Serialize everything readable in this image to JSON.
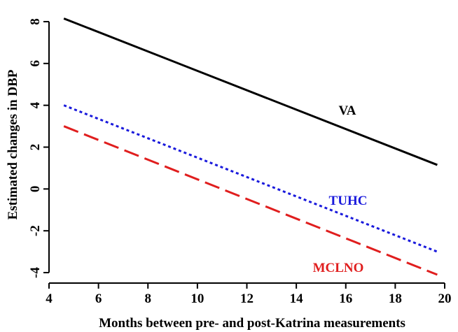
{
  "chart_data": {
    "type": "line",
    "xlabel": "Months between pre- and post-Katrina measurements",
    "ylabel": "Estimated changes in DBP",
    "xlim": [
      4,
      20
    ],
    "ylim": [
      -4.5,
      8.5
    ],
    "xticks": [
      4,
      6,
      8,
      10,
      12,
      14,
      16,
      18,
      20
    ],
    "yticks": [
      -4,
      -2,
      0,
      2,
      4,
      6,
      8
    ],
    "axes_box": "left and bottom only",
    "grid": false,
    "legend": "none (series labelled directly on the plot)",
    "series": [
      {
        "name": "VA",
        "color": "#000000",
        "dash": "solid",
        "x": [
          4.6,
          19.7
        ],
        "y": [
          8.15,
          1.15
        ]
      },
      {
        "name": "TUHC",
        "color": "#1a1adc",
        "dash": "dotted",
        "x": [
          4.6,
          19.7
        ],
        "y": [
          4.0,
          -3.0
        ]
      },
      {
        "name": "MCLNO",
        "color": "#e01e1e",
        "dash": "dashed",
        "x": [
          4.6,
          19.7
        ],
        "y": [
          3.0,
          -4.1
        ]
      }
    ]
  }
}
